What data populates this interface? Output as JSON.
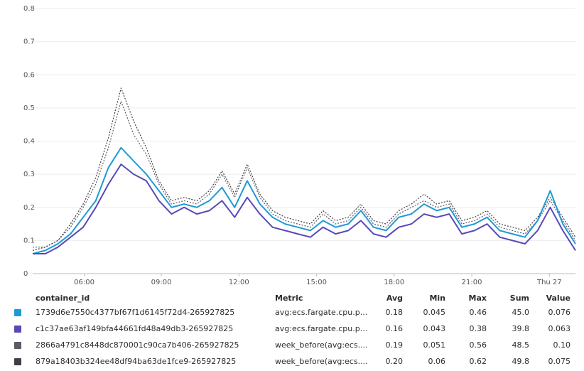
{
  "chart_data": {
    "type": "line",
    "y_ticks": [
      "0",
      "0.1",
      "0.2",
      "0.3",
      "0.4",
      "0.5",
      "0.6",
      "0.7",
      "0.8"
    ],
    "ylim": [
      0,
      0.8
    ],
    "x_ticks": [
      "06:00",
      "09:00",
      "12:00",
      "15:00",
      "18:00",
      "21:00",
      "Thu 27"
    ],
    "x": [
      "04:00",
      "04:30",
      "05:00",
      "05:30",
      "06:00",
      "06:30",
      "07:00",
      "07:30",
      "08:00",
      "08:30",
      "09:00",
      "09:30",
      "10:00",
      "10:30",
      "11:00",
      "11:30",
      "12:00",
      "12:30",
      "13:00",
      "13:30",
      "14:00",
      "14:30",
      "15:00",
      "15:30",
      "16:00",
      "16:30",
      "17:00",
      "17:30",
      "18:00",
      "18:30",
      "19:00",
      "19:30",
      "20:00",
      "20:30",
      "21:00",
      "21:30",
      "22:00",
      "22:30",
      "23:00",
      "23:30",
      "Thu 27 00:00",
      "00:30",
      "01:00",
      "01:30"
    ],
    "grid": true,
    "series": [
      {
        "name": "1739d6e7550c4377bf67f1d6145f72d4-265927825",
        "color": "#1d9ad6",
        "style": "solid",
        "values": [
          0.06,
          0.07,
          0.09,
          0.12,
          0.17,
          0.22,
          0.32,
          0.38,
          0.34,
          0.3,
          0.25,
          0.2,
          0.21,
          0.2,
          0.22,
          0.26,
          0.2,
          0.28,
          0.21,
          0.17,
          0.15,
          0.14,
          0.13,
          0.16,
          0.14,
          0.15,
          0.19,
          0.14,
          0.13,
          0.17,
          0.18,
          0.21,
          0.19,
          0.2,
          0.14,
          0.15,
          0.17,
          0.13,
          0.12,
          0.11,
          0.16,
          0.25,
          0.15,
          0.09
        ]
      },
      {
        "name": "c1c37ae63af149bfa44661fd48a49db3-265927825",
        "color": "#5849b8",
        "style": "solid",
        "values": [
          0.06,
          0.06,
          0.08,
          0.11,
          0.14,
          0.2,
          0.27,
          0.33,
          0.3,
          0.28,
          0.22,
          0.18,
          0.2,
          0.18,
          0.19,
          0.22,
          0.17,
          0.23,
          0.18,
          0.14,
          0.13,
          0.12,
          0.11,
          0.14,
          0.12,
          0.13,
          0.16,
          0.12,
          0.11,
          0.14,
          0.15,
          0.18,
          0.17,
          0.18,
          0.12,
          0.13,
          0.15,
          0.11,
          0.1,
          0.09,
          0.13,
          0.2,
          0.13,
          0.07
        ]
      },
      {
        "name": "2866a4791c8448dc870001c90ca7b406-265927825",
        "color": "#5b5b66",
        "style": "dotted",
        "values": [
          0.08,
          0.08,
          0.1,
          0.14,
          0.2,
          0.27,
          0.38,
          0.52,
          0.42,
          0.36,
          0.27,
          0.21,
          0.22,
          0.21,
          0.24,
          0.3,
          0.23,
          0.32,
          0.23,
          0.18,
          0.16,
          0.15,
          0.14,
          0.18,
          0.15,
          0.16,
          0.2,
          0.15,
          0.14,
          0.18,
          0.2,
          0.22,
          0.2,
          0.21,
          0.15,
          0.16,
          0.18,
          0.14,
          0.13,
          0.12,
          0.16,
          0.22,
          0.16,
          0.1
        ]
      },
      {
        "name": "879a18403b324ee48df94ba63de1fce9-265927825",
        "color": "#3f3f47",
        "style": "dotted",
        "values": [
          0.07,
          0.08,
          0.1,
          0.15,
          0.21,
          0.29,
          0.41,
          0.56,
          0.46,
          0.38,
          0.28,
          0.22,
          0.23,
          0.22,
          0.25,
          0.31,
          0.24,
          0.33,
          0.24,
          0.19,
          0.17,
          0.16,
          0.15,
          0.19,
          0.16,
          0.17,
          0.21,
          0.16,
          0.15,
          0.19,
          0.21,
          0.24,
          0.21,
          0.22,
          0.16,
          0.17,
          0.19,
          0.15,
          0.14,
          0.13,
          0.17,
          0.23,
          0.17,
          0.11
        ]
      }
    ]
  },
  "legend": {
    "headers": {
      "container_id": "container_id",
      "metric": "Metric",
      "avg": "Avg",
      "min": "Min",
      "max": "Max",
      "sum": "Sum",
      "value": "Value"
    },
    "rows": [
      {
        "color": "#1d9ad6",
        "id": "1739d6e7550c4377bf67f1d6145f72d4-265927825",
        "metric": "avg:ecs.fargate.cpu.p...",
        "avg": "0.18",
        "min": "0.045",
        "max": "0.46",
        "sum": "45.0",
        "value": "0.076"
      },
      {
        "color": "#5849b8",
        "id": "c1c37ae63af149bfa44661fd48a49db3-265927825",
        "metric": "avg:ecs.fargate.cpu.p...",
        "avg": "0.16",
        "min": "0.043",
        "max": "0.38",
        "sum": "39.8",
        "value": "0.063"
      },
      {
        "color": "#5b5b66",
        "id": "2866a4791c8448dc870001c90ca7b406-265927825",
        "metric": "week_before(avg:ecs....",
        "avg": "0.19",
        "min": "0.051",
        "max": "0.56",
        "sum": "48.5",
        "value": "0.10"
      },
      {
        "color": "#3f3f47",
        "id": "879a18403b324ee48df94ba63de1fce9-265927825",
        "metric": "week_before(avg:ecs....",
        "avg": "0.20",
        "min": "0.06",
        "max": "0.62",
        "sum": "49.8",
        "value": "0.075"
      }
    ]
  }
}
